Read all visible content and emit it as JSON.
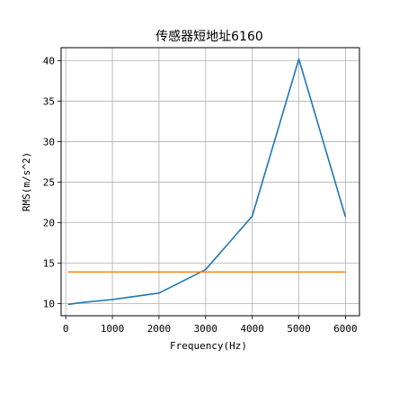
{
  "chart_data": {
    "type": "line",
    "title": "传感器短地址6160",
    "xlabel": "Frequency(Hz)",
    "ylabel": "RMS(m/s^2)",
    "xlim": [
      -100,
      6300
    ],
    "ylim": [
      8.5,
      41.6
    ],
    "xticks": [
      0,
      1000,
      2000,
      3000,
      4000,
      5000,
      6000
    ],
    "yticks": [
      10,
      15,
      20,
      25,
      30,
      35,
      40
    ],
    "grid": true,
    "series": [
      {
        "color": "#1f77b4",
        "x": [
          50,
          300,
          1000,
          2000,
          3000,
          4000,
          5000,
          6000
        ],
        "y": [
          9.9,
          10.1,
          10.5,
          11.3,
          14.2,
          20.8,
          40.2,
          20.7
        ]
      },
      {
        "color": "#ff7f0e",
        "x": [
          50,
          6000
        ],
        "y": [
          13.9,
          13.9
        ]
      }
    ]
  }
}
